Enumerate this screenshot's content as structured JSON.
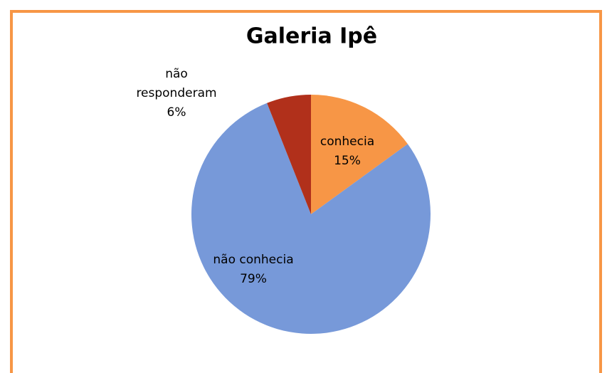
{
  "chart_data": {
    "type": "pie",
    "title": "Galeria Ipê",
    "categories": [
      "conhecia",
      "não conhecia",
      "não responderam"
    ],
    "values": [
      15,
      79,
      6
    ],
    "value_labels": [
      "15%",
      "79%",
      "6%"
    ],
    "colors": [
      "#f79646",
      "#7799d9",
      "#b1301b"
    ]
  }
}
